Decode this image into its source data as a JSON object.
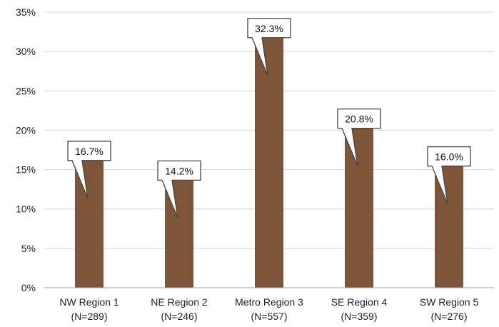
{
  "chart_data": {
    "type": "bar",
    "title": "",
    "xlabel": "",
    "ylabel": "",
    "categories": [
      {
        "line1": "NW Region 1",
        "line2": "(N=289)"
      },
      {
        "line1": "NE Region 2",
        "line2": "(N=246)"
      },
      {
        "line1": "Metro Region 3",
        "line2": "(N=557)"
      },
      {
        "line1": "SE Region 4",
        "line2": "(N=359)"
      },
      {
        "line1": "SW Region 5",
        "line2": "(N=276)"
      }
    ],
    "values": [
      16.7,
      14.2,
      32.3,
      20.8,
      16.0
    ],
    "data_labels": [
      "16.7%",
      "14.2%",
      "32.3%",
      "20.8%",
      "16.0%"
    ],
    "y_ticks": [
      "0%",
      "5%",
      "10%",
      "15%",
      "20%",
      "25%",
      "30%",
      "35%"
    ],
    "ylim": [
      0,
      35
    ],
    "y_tick_step": 5,
    "grid": true,
    "legend": "none",
    "bar_color": "#7f5539",
    "gridline_color": "#d4d4d4",
    "axis_color": "#a6a6a6"
  }
}
